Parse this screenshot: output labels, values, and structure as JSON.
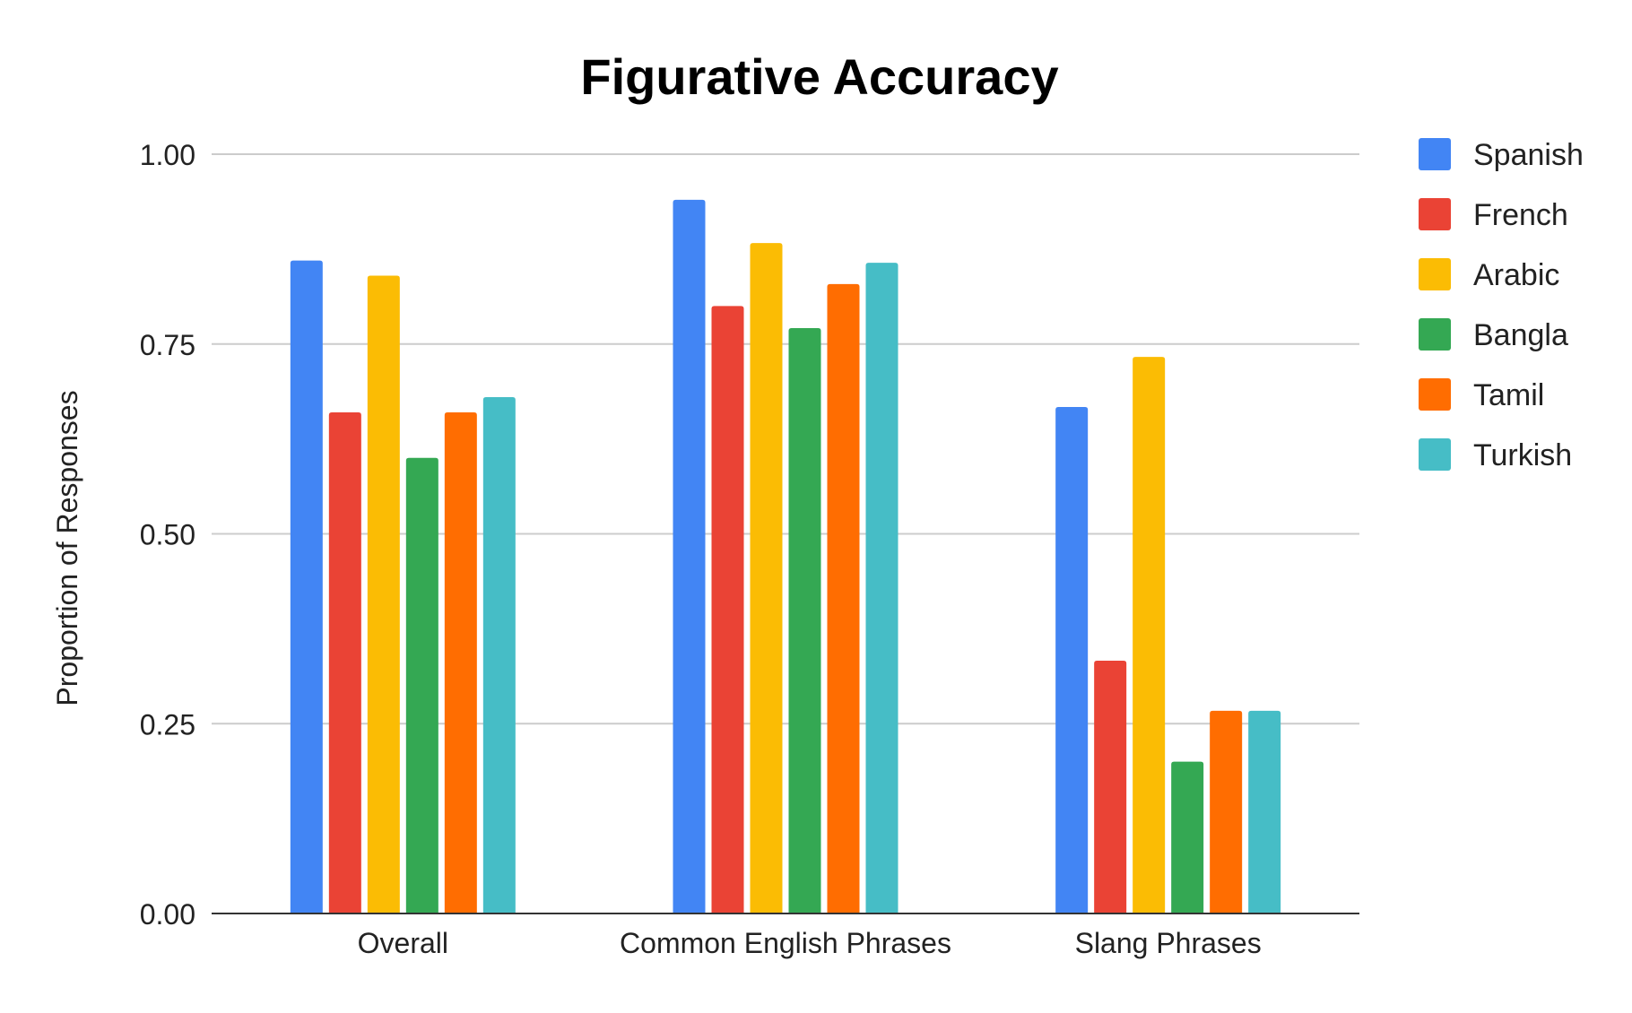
{
  "chart_data": {
    "type": "bar",
    "title": "Figurative Accuracy",
    "xlabel": "",
    "ylabel": "Proportion of Responses",
    "ylim": [
      0,
      1
    ],
    "yticks": [
      0,
      0.25,
      0.5,
      0.75,
      1
    ],
    "ytick_labels": [
      "0.00",
      "0.25",
      "0.50",
      "0.75",
      "1.00"
    ],
    "grid": true,
    "legend_position": "right",
    "categories": [
      "Overall",
      "Common English Phrases",
      "Slang Phrases"
    ],
    "series": [
      {
        "name": "Spanish",
        "color": "#4285F4",
        "values": [
          0.86,
          0.94,
          0.667
        ]
      },
      {
        "name": "French",
        "color": "#EA4335",
        "values": [
          0.66,
          0.8,
          0.333
        ]
      },
      {
        "name": "Arabic",
        "color": "#FBBC04",
        "values": [
          0.84,
          0.883,
          0.733
        ]
      },
      {
        "name": "Bangla",
        "color": "#34A853",
        "values": [
          0.6,
          0.771,
          0.2
        ]
      },
      {
        "name": "Tamil",
        "color": "#FF6D01",
        "values": [
          0.66,
          0.829,
          0.267
        ]
      },
      {
        "name": "Turkish",
        "color": "#46BDC6",
        "values": [
          0.68,
          0.857,
          0.267
        ]
      }
    ]
  }
}
